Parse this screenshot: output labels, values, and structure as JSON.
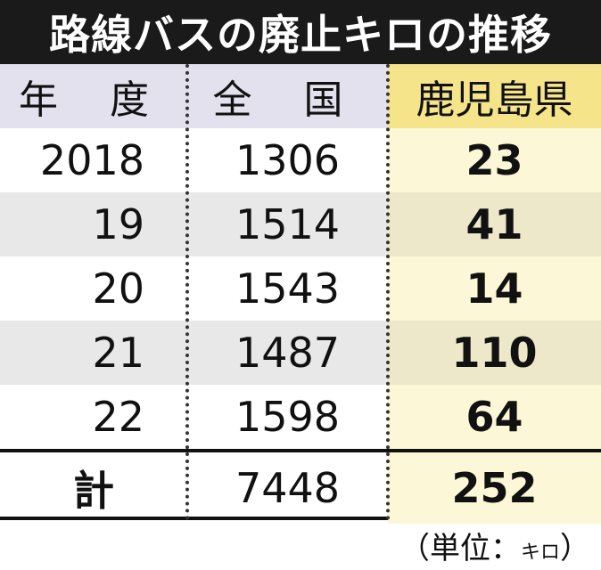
{
  "chart_data": {
    "type": "table",
    "title": "路線バスの廃止キロの推移",
    "columns": [
      "年 度",
      "全 国",
      "鹿児島県"
    ],
    "rows": [
      {
        "year": "2018",
        "national": 1306,
        "kagoshima": 23
      },
      {
        "year": "19",
        "national": 1514,
        "kagoshima": 41
      },
      {
        "year": "20",
        "national": 1543,
        "kagoshima": 14
      },
      {
        "year": "21",
        "national": 1487,
        "kagoshima": 110
      },
      {
        "year": "22",
        "national": 1598,
        "kagoshima": 64
      }
    ],
    "total": {
      "label": "計",
      "national": 7448,
      "kagoshima": 252
    },
    "unit_prefix": "（単位：",
    "unit_symbol": "キロ",
    "unit_suffix": "）"
  }
}
